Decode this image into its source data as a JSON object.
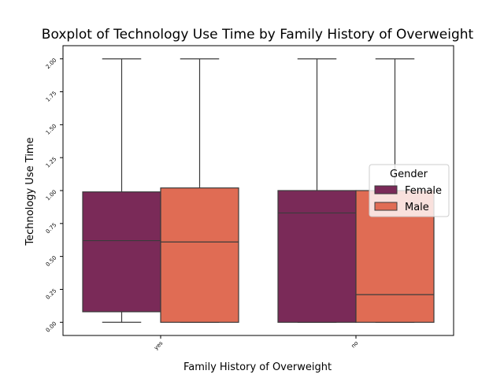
{
  "chart_data": {
    "type": "boxplot",
    "title": "Boxplot of Technology Use Time by Family History of Overweight",
    "xlabel": "Family History of Overweight",
    "ylabel": "Technology Use Time",
    "categories": [
      "yes",
      "no"
    ],
    "ylim": [
      -0.1,
      2.1
    ],
    "yticks": [
      0.0,
      0.25,
      0.5,
      0.75,
      1.0,
      1.25,
      1.5,
      1.75,
      2.0
    ],
    "ytick_labels": [
      "0.00",
      "0.25",
      "0.50",
      "0.75",
      "1.00",
      "1.25",
      "1.50",
      "1.75",
      "2.00"
    ],
    "grid": false,
    "legend": {
      "title": "Gender",
      "placement": "center-right"
    },
    "series": [
      {
        "name": "Female",
        "color": "#7a2a58",
        "boxes": [
          {
            "category": "yes",
            "min": 0.0,
            "q1": 0.08,
            "median": 0.62,
            "q3": 0.99,
            "max": 2.0
          },
          {
            "category": "no",
            "min": 0.0,
            "q1": 0.0,
            "median": 0.83,
            "q3": 1.0,
            "max": 2.0
          }
        ]
      },
      {
        "name": "Male",
        "color": "#e06c54",
        "boxes": [
          {
            "category": "yes",
            "min": 0.0,
            "q1": 0.0,
            "median": 0.61,
            "q3": 1.02,
            "max": 2.0
          },
          {
            "category": "no",
            "min": 0.0,
            "q1": 0.0,
            "median": 0.21,
            "q3": 1.0,
            "max": 2.0
          }
        ]
      }
    ]
  }
}
